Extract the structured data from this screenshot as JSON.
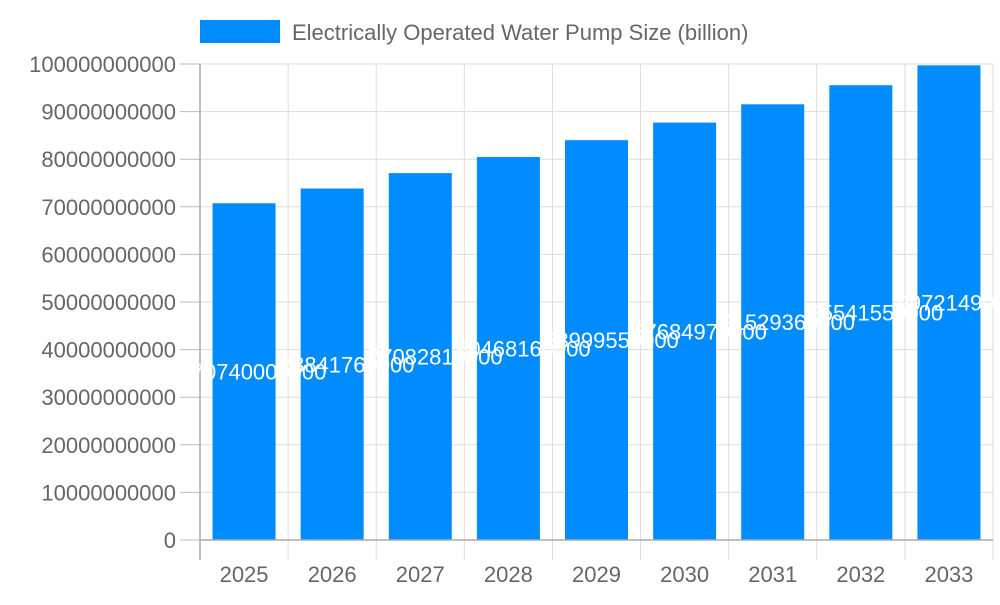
{
  "chart_data": {
    "type": "bar",
    "title": "",
    "xlabel": "",
    "ylabel": "",
    "ylim": [
      0,
      100000000000
    ],
    "yticks": [
      0,
      10000000000,
      20000000000,
      30000000000,
      40000000000,
      50000000000,
      60000000000,
      70000000000,
      80000000000,
      90000000000,
      100000000000
    ],
    "grid": true,
    "legend_position": "top",
    "categories": [
      "2025",
      "2026",
      "2027",
      "2028",
      "2029",
      "2030",
      "2031",
      "2032",
      "2033"
    ],
    "series": [
      {
        "name": "Electrically Operated Water Pump Size (billion)",
        "color": "#008CFF",
        "values": [
          70740000000,
          73841760000,
          77082810000,
          80468160000,
          83999550000,
          87684970000,
          91529360000,
          95541550000,
          99721490000
        ]
      }
    ],
    "data_labels": true
  }
}
